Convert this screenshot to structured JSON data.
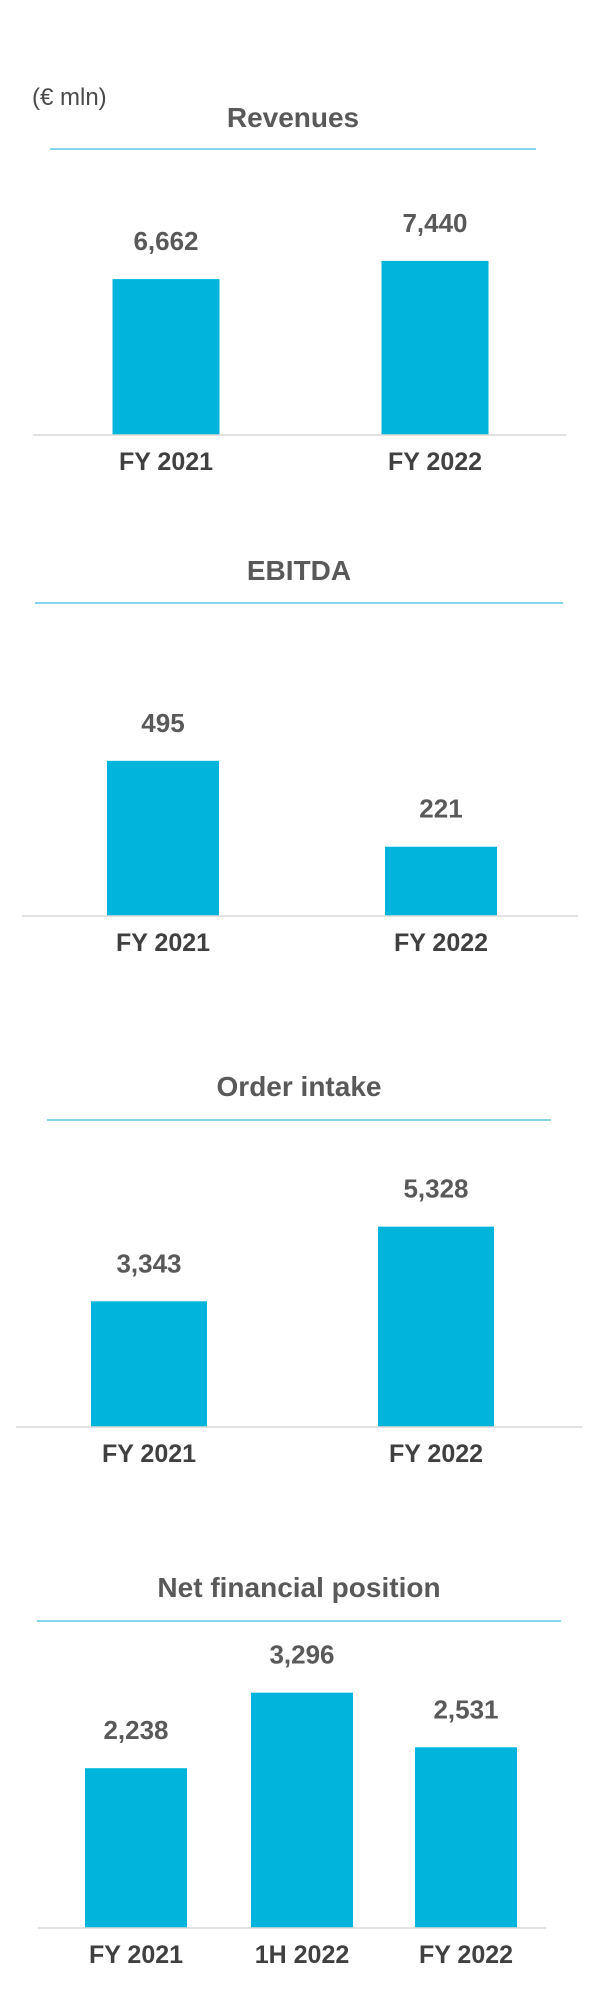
{
  "unit_label": "(€ mln)",
  "colors": {
    "bar": "#00B4DC",
    "title_rule": "#5BC8E0",
    "axis": "#D9D9D9"
  },
  "chart_data": [
    {
      "type": "bar",
      "title": "Revenues",
      "categories": [
        "FY 2021",
        "FY 2022"
      ],
      "values": [
        6662,
        7440
      ],
      "value_labels": [
        "6,662",
        "7,440"
      ]
    },
    {
      "type": "bar",
      "title": "EBITDA",
      "categories": [
        "FY 2021",
        "FY 2022"
      ],
      "values": [
        495,
        221
      ],
      "value_labels": [
        "495",
        "221"
      ]
    },
    {
      "type": "bar",
      "title": "Order intake",
      "categories": [
        "FY 2021",
        "FY 2022"
      ],
      "values": [
        3343,
        5328
      ],
      "value_labels": [
        "3,343",
        "5,328"
      ]
    },
    {
      "type": "bar",
      "title": "Net financial position",
      "categories": [
        "FY 2021",
        "1H 2022",
        "FY 2022"
      ],
      "values": [
        2238,
        3296,
        2531
      ],
      "value_labels": [
        "2,238",
        "3,296",
        "2,531"
      ]
    }
  ]
}
